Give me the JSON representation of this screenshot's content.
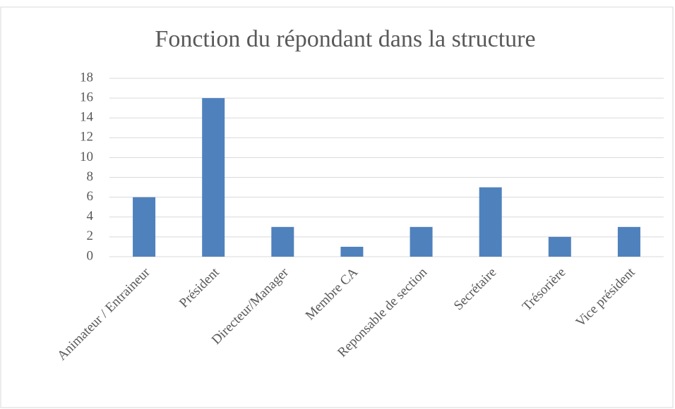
{
  "chart_data": {
    "type": "bar",
    "title": "Fonction du répondant dans la structure",
    "categories": [
      "Animateur / Entraineur",
      "Président",
      "Directeur/Manager",
      "Membre CA",
      "Reponsable de section",
      "Secrétaire",
      "Trésorière",
      "Vice président"
    ],
    "values": [
      6,
      16,
      3,
      1,
      3,
      7,
      2,
      3
    ],
    "color": "#4f81bd",
    "ylim": [
      0,
      18
    ],
    "yticks": [
      0,
      2,
      4,
      6,
      8,
      10,
      12,
      14,
      16,
      18
    ],
    "grid": true
  }
}
